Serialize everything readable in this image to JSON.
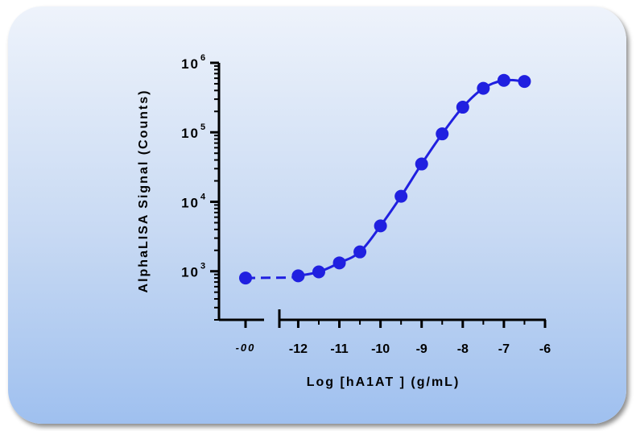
{
  "chart_data": {
    "type": "scatter",
    "ylabel": "AlphaLISA Signal (Counts)",
    "xlabel": "Log [hA1AT ] (g/mL)",
    "y_scale": "log",
    "ylim": [
      200,
      1000000
    ],
    "xlim": [
      -12.4,
      -6
    ],
    "x_ticks": [
      {
        "value": -12,
        "label": "-12"
      },
      {
        "value": -11,
        "label": "-11"
      },
      {
        "value": -10,
        "label": "-10"
      },
      {
        "value": -9,
        "label": "-9"
      },
      {
        "value": -8,
        "label": "-8"
      },
      {
        "value": -7,
        "label": "-7"
      },
      {
        "value": -6,
        "label": "-6"
      }
    ],
    "x_special_tick": {
      "label": "-00",
      "y": 800
    },
    "y_ticks": [
      {
        "value": 1000,
        "base": "10",
        "exp": "3"
      },
      {
        "value": 10000,
        "base": "10",
        "exp": "4"
      },
      {
        "value": 100000,
        "base": "10",
        "exp": "5"
      },
      {
        "value": 1000000,
        "base": "10",
        "exp": "6"
      }
    ],
    "series": [
      {
        "color": "#2020e0",
        "x": [
          -12,
          -11.5,
          -11,
          -10.5,
          -10,
          -9.5,
          -9,
          -8.5,
          -8,
          -7.5,
          -7,
          -6.5
        ],
        "y": [
          860,
          980,
          1320,
          1900,
          4500,
          12000,
          35000,
          95000,
          230000,
          430000,
          560000,
          540000
        ]
      }
    ],
    "grid": false,
    "legend": "none"
  }
}
